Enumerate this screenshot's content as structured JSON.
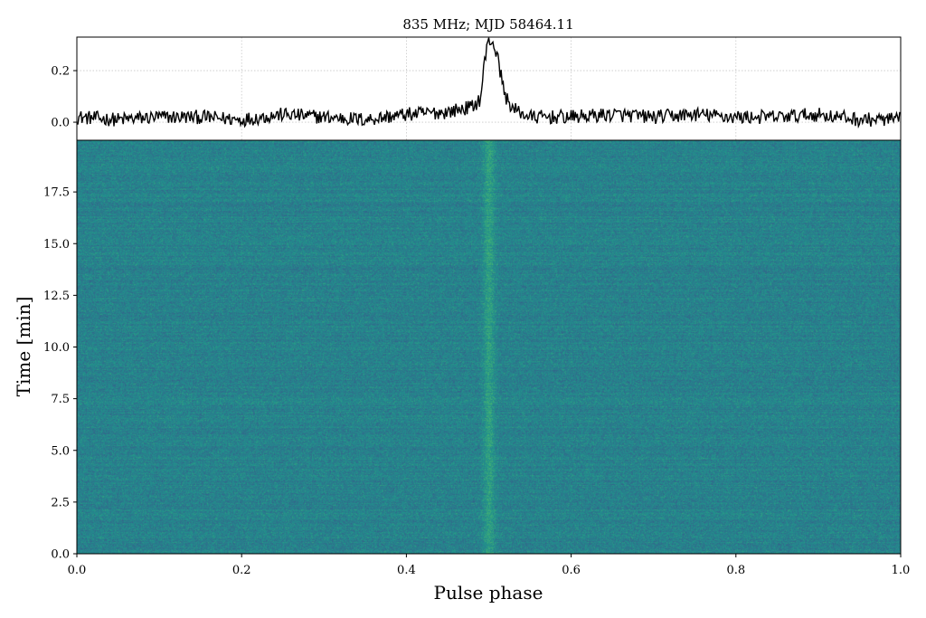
{
  "chart_data": [
    {
      "type": "line",
      "title": "835 MHz; MJD 58464.11",
      "xlabel": "",
      "ylabel": "",
      "xlim": [
        0.0,
        1.0
      ],
      "ylim": [
        -0.07,
        0.33
      ],
      "yticks": [
        0.0,
        0.2
      ],
      "ytick_labels": [
        "0.0",
        "0.2"
      ],
      "grid": true,
      "series": [
        {
          "x": [
            0.0,
            0.05,
            0.1,
            0.15,
            0.2,
            0.25,
            0.3,
            0.35,
            0.4,
            0.45,
            0.48,
            0.49,
            0.495,
            0.5,
            0.505,
            0.51,
            0.515,
            0.52,
            0.53,
            0.55,
            0.6,
            0.65,
            0.7,
            0.75,
            0.8,
            0.85,
            0.9,
            0.95,
            1.0
          ],
          "values": [
            0.02,
            0.01,
            0.02,
            0.02,
            0.01,
            0.03,
            0.02,
            0.01,
            0.03,
            0.04,
            0.06,
            0.09,
            0.24,
            0.32,
            0.31,
            0.26,
            0.18,
            0.1,
            0.05,
            0.02,
            0.02,
            0.03,
            0.02,
            0.03,
            0.02,
            0.02,
            0.03,
            0.01,
            0.01
          ]
        }
      ]
    },
    {
      "type": "heatmap",
      "xlabel": "Pulse phase",
      "ylabel": "Time [min]",
      "xlim": [
        0.0,
        1.0
      ],
      "ylim": [
        0.0,
        20.0
      ],
      "xticks": [
        0.0,
        0.2,
        0.4,
        0.6,
        0.8,
        1.0
      ],
      "xtick_labels": [
        "0.0",
        "0.2",
        "0.4",
        "0.6",
        "0.8",
        "1.0"
      ],
      "yticks": [
        0.0,
        2.5,
        5.0,
        7.5,
        10.0,
        12.5,
        15.0,
        17.5
      ],
      "ytick_labels": [
        "0.0",
        "2.5",
        "5.0",
        "7.5",
        "10.0",
        "12.5",
        "15.0",
        "17.5"
      ],
      "colormap": "viridis",
      "pulse_phase": 0.5,
      "base_color": "#2d7e8c",
      "low_color": "#3f2a78",
      "high_color": "#58c36c"
    }
  ]
}
